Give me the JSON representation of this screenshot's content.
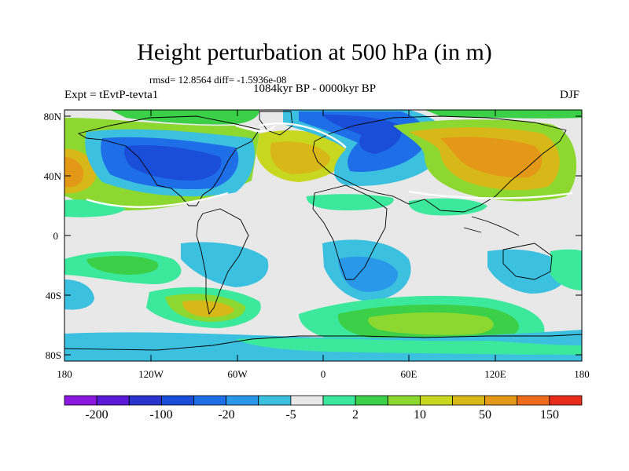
{
  "title": "Height perturbation at 500 hPa (in m)",
  "stats": "rmsd= 12.8564  diff= -1.5936e-08",
  "period": "1084kyr BP - 0000kyr BP",
  "experiment": "Expt = tEvtP-tevta1",
  "season": "DJF",
  "lat_ticks": [
    "80N",
    "40N",
    "0",
    "40S",
    "80S"
  ],
  "lon_ticks": [
    "180",
    "120W",
    "60W",
    "0",
    "60E",
    "120E",
    "180"
  ],
  "colorbar": {
    "labels": [
      "-200",
      "-100",
      "-20",
      "-5",
      "2",
      "10",
      "50",
      "150"
    ],
    "colors": [
      "#8c18e0",
      "#5a1ad8",
      "#2a34cc",
      "#1a4ed8",
      "#1e6ee8",
      "#2a98e8",
      "#3cc0e0",
      "#e8e8e8",
      "#3ce89c",
      "#3cd048",
      "#8cd830",
      "#c8d820",
      "#d8b818",
      "#e49818",
      "#ec6c1c",
      "#e82c1c"
    ]
  },
  "field_colors": {
    "neutral": "#e8e8e8",
    "pos1": "#3ce89c",
    "pos2": "#3cd048",
    "pos3": "#8cd830",
    "pos4": "#c8d820",
    "pos5": "#d8b818",
    "pos6": "#e49818",
    "neg1": "#3cc0e0",
    "neg2": "#2a98e8",
    "neg3": "#1e6ee8",
    "neg4": "#1a4ed8"
  }
}
